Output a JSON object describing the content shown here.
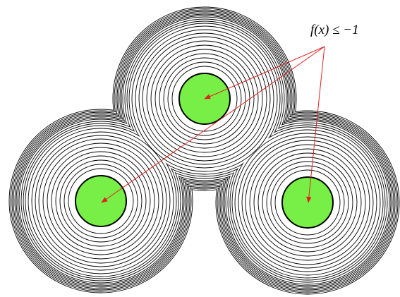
{
  "label": "f(x) ≤ −1"
}
